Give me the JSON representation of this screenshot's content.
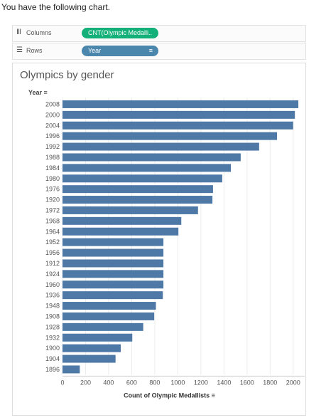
{
  "intro_text": "You have the following chart.",
  "shelves": {
    "columns": {
      "label": "Columns",
      "icon": "columns-icon",
      "pill": "CNT(Olympic Medalli..",
      "pill_color": "#13b07a"
    },
    "rows": {
      "label": "Rows",
      "icon": "rows-icon",
      "pill": "Year",
      "pill_color": "#4b86ad"
    }
  },
  "colors": {
    "bar": "#4e79a7"
  },
  "chart_data": {
    "type": "bar",
    "orientation": "horizontal",
    "title": "Olympics by gender",
    "ylabel": "Year",
    "xlabel": "Count of Olympic Medallists",
    "categories": [
      "2008",
      "2000",
      "2004",
      "1996",
      "1992",
      "1988",
      "1984",
      "1980",
      "1976",
      "1920",
      "1972",
      "1968",
      "1964",
      "1952",
      "1956",
      "1912",
      "1924",
      "1960",
      "1936",
      "1948",
      "1908",
      "1928",
      "1932",
      "1900",
      "1904",
      "1896"
    ],
    "values": [
      2045,
      2015,
      2000,
      1860,
      1705,
      1545,
      1460,
      1385,
      1305,
      1300,
      1175,
      1030,
      1005,
      875,
      875,
      875,
      875,
      875,
      870,
      810,
      795,
      700,
      605,
      505,
      460,
      150
    ],
    "xticks": [
      0,
      200,
      400,
      600,
      800,
      1000,
      1200,
      1400,
      1600,
      1800,
      2000
    ],
    "xlim": [
      0,
      2100
    ],
    "grid": true
  }
}
